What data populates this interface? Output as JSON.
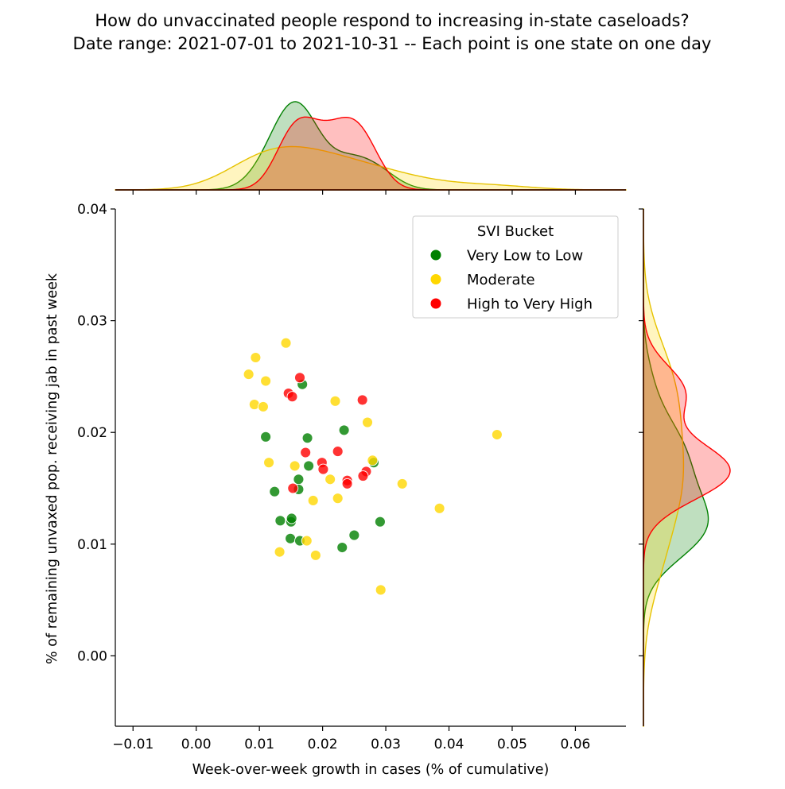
{
  "chart_data": {
    "type": "scatter",
    "title": "How do unvaccinated people respond to increasing in-state caseloads?",
    "subtitle": "Date range: 2021-07-01 to 2021-10-31 -- Each point is one state on one day",
    "xlabel": "Week-over-week growth in cases (% of cumulative)",
    "ylabel": "% of remaining unvaxed pop. receiving jab in past week",
    "xlim": [
      -0.0128,
      0.068
    ],
    "ylim": [
      -0.0063,
      0.04
    ],
    "xticks": [
      "−0.01",
      "0.00",
      "0.01",
      "0.02",
      "0.03",
      "0.04",
      "0.05",
      "0.06"
    ],
    "yticks": [
      "0.00",
      "0.01",
      "0.02",
      "0.03",
      "0.04"
    ],
    "legend": {
      "title": "SVI Bucket",
      "position": "top-right"
    },
    "series": [
      {
        "name": "Very Low to Low",
        "color": "#008000",
        "points": [
          [
            0.0168,
            0.0243
          ],
          [
            0.011,
            0.0196
          ],
          [
            0.0176,
            0.0195
          ],
          [
            0.0234,
            0.0202
          ],
          [
            0.0178,
            0.017
          ],
          [
            0.0162,
            0.0158
          ],
          [
            0.0124,
            0.0147
          ],
          [
            0.0162,
            0.0149
          ],
          [
            0.0281,
            0.0173
          ],
          [
            0.0133,
            0.0121
          ],
          [
            0.015,
            0.012
          ],
          [
            0.0151,
            0.0123
          ],
          [
            0.0291,
            0.012
          ],
          [
            0.0149,
            0.0105
          ],
          [
            0.0164,
            0.0103
          ],
          [
            0.025,
            0.0108
          ],
          [
            0.0231,
            0.0097
          ]
        ]
      },
      {
        "name": "Moderate",
        "color": "#FFD700",
        "points": [
          [
            0.0142,
            0.028
          ],
          [
            0.0094,
            0.0267
          ],
          [
            0.0083,
            0.0252
          ],
          [
            0.011,
            0.0246
          ],
          [
            0.0092,
            0.0225
          ],
          [
            0.0106,
            0.0223
          ],
          [
            0.022,
            0.0228
          ],
          [
            0.0271,
            0.0209
          ],
          [
            0.0115,
            0.0173
          ],
          [
            0.0156,
            0.017
          ],
          [
            0.0279,
            0.0175
          ],
          [
            0.0212,
            0.0158
          ],
          [
            0.0185,
            0.0139
          ],
          [
            0.0224,
            0.0141
          ],
          [
            0.0326,
            0.0154
          ],
          [
            0.0476,
            0.0198
          ],
          [
            0.0385,
            0.0132
          ],
          [
            0.0132,
            0.0093
          ],
          [
            0.0175,
            0.0103
          ],
          [
            0.0189,
            0.009
          ],
          [
            0.0292,
            0.0059
          ]
        ]
      },
      {
        "name": "High to Very High",
        "color": "#FF0000",
        "points": [
          [
            0.0164,
            0.0249
          ],
          [
            0.0146,
            0.0235
          ],
          [
            0.0152,
            0.0232
          ],
          [
            0.0263,
            0.0229
          ],
          [
            0.0173,
            0.0182
          ],
          [
            0.0224,
            0.0183
          ],
          [
            0.0199,
            0.0173
          ],
          [
            0.0201,
            0.0167
          ],
          [
            0.0269,
            0.0165
          ],
          [
            0.0264,
            0.0161
          ],
          [
            0.0239,
            0.0157
          ],
          [
            0.0239,
            0.0154
          ],
          [
            0.0153,
            0.015
          ]
        ]
      }
    ]
  }
}
